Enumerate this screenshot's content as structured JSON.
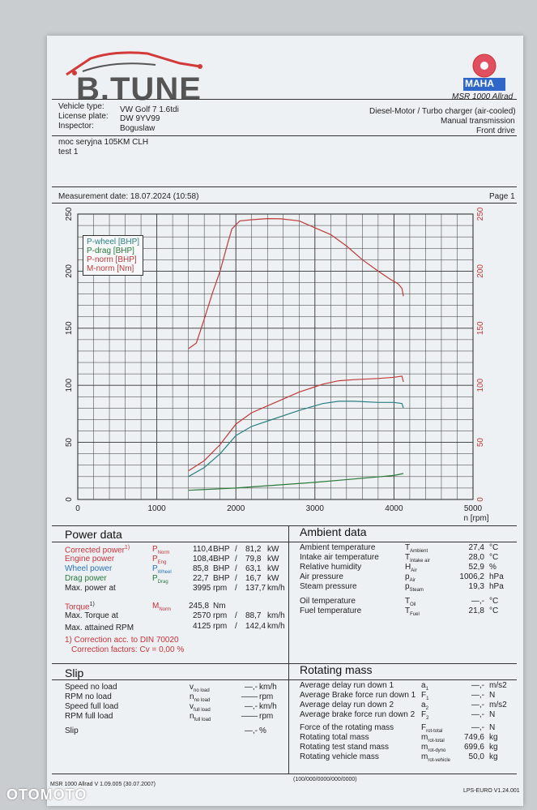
{
  "header": {
    "logo": "B.TUNE",
    "mahle_badge": "MAHA",
    "machine": "MSR 1000 Allrad",
    "vehicle_type_label": "Vehicle type:",
    "vehicle_type": "VW Golf 7 1.6tdi",
    "license_label": "License plate:",
    "license": "DW 9YV99",
    "inspector_label": "Inspector:",
    "inspector": "Boguslaw",
    "engine": "Diesel-Motor / Turbo charger (air-cooled)",
    "transmission": "Manual transmission",
    "drive": "Front drive",
    "note1": "moc seryjna 105KM CLH",
    "note2": "test 1",
    "measurement_date": "Measurement date: 18.07.2024 (10:58)",
    "page": "Page 1"
  },
  "chart_data": {
    "type": "line",
    "xlabel": "n [rpm]",
    "xlim": [
      0,
      5000
    ],
    "ylim": [
      0,
      250
    ],
    "xticks": [
      "0",
      "1000",
      "2000",
      "3000",
      "4000",
      "5000"
    ],
    "yticks_left": [
      "0",
      "50",
      "100",
      "150",
      "200",
      "250"
    ],
    "yticks_right": [
      "0",
      "50",
      "100",
      "150",
      "200",
      "250"
    ],
    "grid": true,
    "legend_position": "top-left",
    "series": [
      {
        "name": "P-wheel [BHP]",
        "color": "#2a7f84",
        "x": [
          1400,
          1600,
          1800,
          2000,
          2200,
          2500,
          2800,
          3100,
          3300,
          3500,
          3800,
          4000,
          4100,
          4120
        ],
        "y": [
          20,
          28,
          40,
          56,
          64,
          71,
          78,
          84,
          86,
          86,
          85,
          85,
          84,
          80
        ]
      },
      {
        "name": "P-drag [BHP]",
        "color": "#2a7a3a",
        "x": [
          1400,
          2000,
          2500,
          3000,
          3500,
          4000,
          4120
        ],
        "y": [
          8,
          10,
          12.5,
          15,
          18,
          21,
          22.7
        ]
      },
      {
        "name": "P-norm [BHP]",
        "color": "#c03a3a",
        "x": [
          1400,
          1600,
          1800,
          2000,
          2200,
          2500,
          2800,
          3100,
          3300,
          3500,
          3800,
          4000,
          4100,
          4120
        ],
        "y": [
          25,
          34,
          48,
          66,
          76,
          85,
          94,
          101,
          104,
          105,
          106,
          107,
          108,
          103
        ]
      },
      {
        "name": "M-norm [Nm]",
        "color": "#c03a3a",
        "x": [
          1400,
          1500,
          1600,
          1700,
          1800,
          1900,
          1950,
          2050,
          2200,
          2400,
          2570,
          2800,
          3000,
          3200,
          3400,
          3600,
          3800,
          3950,
          4050,
          4100,
          4120
        ],
        "y": [
          132,
          137,
          158,
          180,
          200,
          225,
          237,
          244,
          245,
          246,
          245.8,
          244,
          238,
          232,
          222,
          210,
          200,
          193,
          189,
          185,
          178
        ]
      }
    ]
  },
  "power": {
    "title": "Power data",
    "rows": [
      {
        "label": "Corrected power",
        "sup": "1)",
        "sym": "P",
        "sub": "Norm",
        "v1": "110,4",
        "u1": "BHP",
        "sep": "/",
        "v2": "81,2",
        "u2": "kW",
        "color": "#c8323a"
      },
      {
        "label": "Engine power",
        "sup": "",
        "sym": "P",
        "sub": "Eng",
        "v1": "108,4",
        "u1": "BHP",
        "sep": "/",
        "v2": "79,8",
        "u2": "kW",
        "color": "#c8323a"
      },
      {
        "label": "Wheel power",
        "sup": "",
        "sym": "P",
        "sub": "Wheel",
        "v1": "85,8",
        "u1": "BHP",
        "sep": "/",
        "v2": "63,1",
        "u2": "kW",
        "color": "#2b73b8"
      },
      {
        "label": "Drag power",
        "sup": "",
        "sym": "P",
        "sub": "Drag",
        "v1": "22,7",
        "u1": "BHP",
        "sep": "/",
        "v2": "16,7",
        "u2": "kW",
        "color": "#267a40"
      },
      {
        "label": "Max. power at",
        "sup": "",
        "sym": "",
        "sub": "",
        "v1": "3995",
        "u1": "rpm",
        "sep": "/",
        "v2": "137,7",
        "u2": "km/h",
        "color": "#222222"
      }
    ],
    "torque": {
      "label": "Torque",
      "sup": "1)",
      "sym": "M",
      "sub": "Norm",
      "v1": "245,8",
      "u1": "Nm"
    },
    "torque_at": {
      "label": "Max. Torque at",
      "v1": "2570",
      "u1": "rpm",
      "sep": "/",
      "v2": "88,7",
      "u2": "km/h"
    },
    "max_rpm": {
      "label": "Max. attained RPM",
      "v1": "4125",
      "u1": "rpm",
      "sep": "/",
      "v2": "142,4",
      "u2": "km/h"
    },
    "correction": "1) Correction acc. to DIN 70020",
    "factors": "Correction factors: Cv = 0,00 %"
  },
  "ambient": {
    "title": "Ambient data",
    "rows": [
      {
        "label": "Ambient temperature",
        "sym": "T",
        "sub": "Ambient",
        "value": "27,4",
        "unit": "°C"
      },
      {
        "label": "Intake air temperature",
        "sym": "T",
        "sub": "Intake air",
        "value": "28,0",
        "unit": "°C"
      },
      {
        "label": "Relative humidity",
        "sym": "H",
        "sub": "Air",
        "value": "52,9",
        "unit": "%"
      },
      {
        "label": "Air pressure",
        "sym": "p",
        "sub": "Air",
        "value": "1006,2",
        "unit": "hPa"
      },
      {
        "label": "Steam pressure",
        "sym": "p",
        "sub": "Steam",
        "value": "19,3",
        "unit": "hPa"
      },
      {
        "label": "Oil temperature",
        "sym": "T",
        "sub": "Oil",
        "value": "—,-",
        "unit": "°C"
      },
      {
        "label": "Fuel temperature",
        "sym": "T",
        "sub": "Fuel",
        "value": "21,8",
        "unit": "°C"
      }
    ]
  },
  "slip": {
    "title": "Slip",
    "rows": [
      {
        "label": "Speed no load",
        "sym": "v",
        "sub": "no load",
        "value": "—,-",
        "unit": "km/h"
      },
      {
        "label": "RPM no load",
        "sym": "n",
        "sub": "no load",
        "value": "——",
        "unit": "rpm"
      },
      {
        "label": "Speed full load",
        "sym": "v",
        "sub": "full load",
        "value": "—,-",
        "unit": "km/h"
      },
      {
        "label": "RPM full load",
        "sym": "n",
        "sub": "full load",
        "value": "——",
        "unit": "rpm"
      },
      {
        "label": "Slip",
        "sym": "",
        "sub": "",
        "value": "—,-",
        "unit": "%"
      }
    ]
  },
  "rotating": {
    "title": "Rotating mass",
    "rows": [
      {
        "label": "Average delay run down 1",
        "sym": "a",
        "sub": "1",
        "value": "—,-",
        "unit": "m/s2"
      },
      {
        "label": "Average Brake force run down 1",
        "sym": "F",
        "sub": "1",
        "value": "—,-",
        "unit": "N"
      },
      {
        "label": "Average delay run down 2",
        "sym": "a",
        "sub": "2",
        "value": "—,-",
        "unit": "m/s2"
      },
      {
        "label": "Average brake force run down 2",
        "sym": "F",
        "sub": "2",
        "value": "—,-",
        "unit": "N"
      },
      {
        "label": "Force of the rotating mass",
        "sym": "F",
        "sub": "rot-total",
        "value": "—,-",
        "unit": "N"
      },
      {
        "label": "Rotating total mass",
        "sym": "m",
        "sub": "rot-total",
        "value": "749,6",
        "unit": "kg"
      },
      {
        "label": "Rotating test stand mass",
        "sym": "m",
        "sub": "rot-dyno",
        "value": "699,6",
        "unit": "kg"
      },
      {
        "label": "Rotating vehicle mass",
        "sym": "m",
        "sub": "rot-vehicle",
        "value": "50,0",
        "unit": "kg"
      }
    ]
  },
  "footer": {
    "left": "MSR 1000 Allrad V 1.09.005 (30.07.2007)",
    "center": "(100/000/0000/000/0000)",
    "right": "LPS-EURO V1.24.001"
  },
  "watermark": "OTOMOTO"
}
